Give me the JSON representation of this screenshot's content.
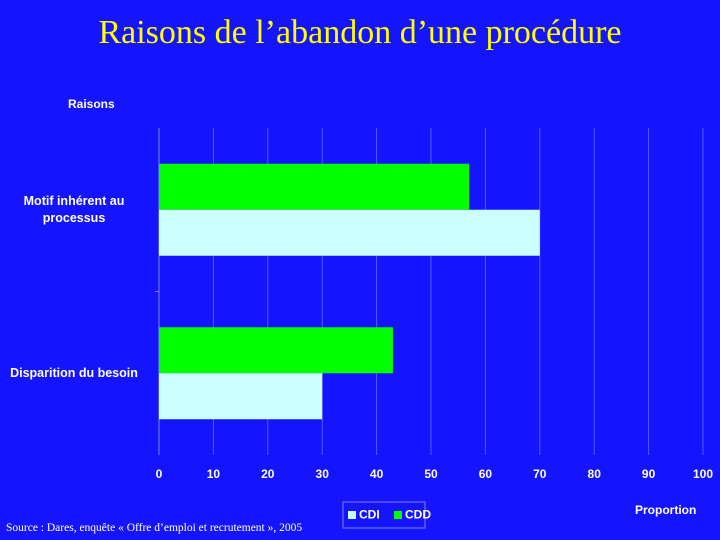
{
  "chart_data": {
    "type": "hbar",
    "title": "Raisons de l’abandon d’une procédure",
    "y_label": "Raisons",
    "x_label": "Proportion",
    "source": "Source : Dares, enquête « Offre d’emploi et recrutement », 2005",
    "categories": [
      "Motif inhérent au processus",
      "Disparition du besoin"
    ],
    "series": [
      {
        "name": "CDI",
        "color": "#ccffff",
        "values": [
          70,
          30
        ]
      },
      {
        "name": "CDD",
        "color": "#00ff00",
        "values": [
          57,
          43
        ]
      }
    ],
    "xlim": [
      0,
      100
    ],
    "xticks": [
      0,
      10,
      20,
      30,
      40,
      50,
      60,
      70,
      80,
      90,
      100
    ],
    "grid": true
  }
}
